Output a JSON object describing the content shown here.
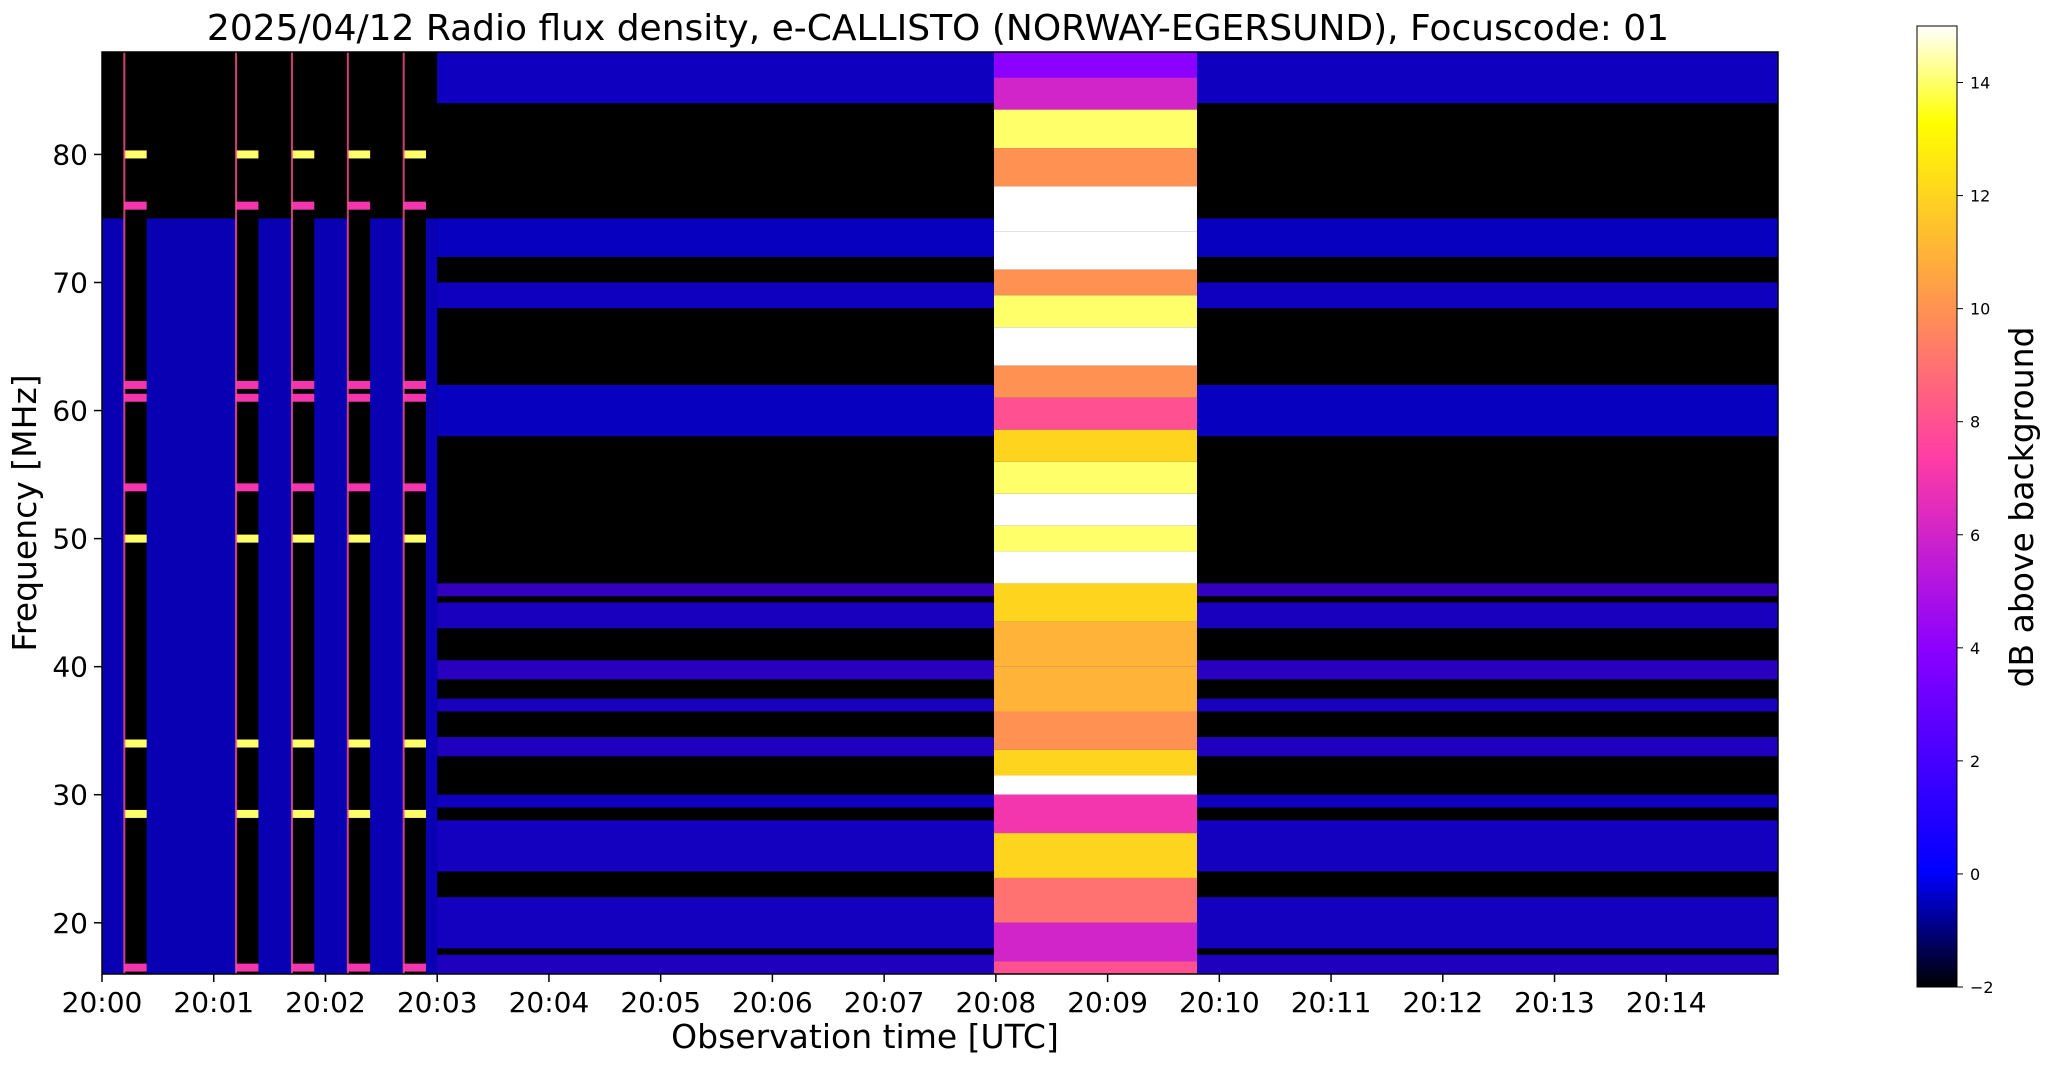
{
  "chart_data": {
    "type": "heatmap",
    "title": "2025/04/12  Radio flux density, e-CALLISTO (NORWAY-EGERSUND), Focuscode: 01",
    "xlabel": "Observation time [UTC]",
    "ylabel": "Frequency [MHz]",
    "xlim": [
      "20:00:00",
      "20:15:00"
    ],
    "ylim": [
      16,
      88
    ],
    "x_ticks": [
      "20:00",
      "20:01",
      "20:02",
      "20:03",
      "20:04",
      "20:05",
      "20:06",
      "20:07",
      "20:08",
      "20:09",
      "20:10",
      "20:11",
      "20:12",
      "20:13",
      "20:14"
    ],
    "y_ticks": [
      20,
      30,
      40,
      50,
      60,
      70,
      80
    ],
    "colorbar": {
      "label": "dB above background",
      "range": [
        -2,
        15
      ],
      "ticks": [
        -2,
        0,
        2,
        4,
        6,
        8,
        10,
        12,
        14
      ],
      "colormap": [
        "#000000",
        "#0000ff",
        "#8a00ff",
        "#ff3ca5",
        "#ff9a4a",
        "#ffff00",
        "#ffffff"
      ]
    },
    "events": [
      {
        "type": "calibration_pulse",
        "start": "20:00:12",
        "end": "20:00:24"
      },
      {
        "type": "calibration_pulse",
        "start": "20:01:12",
        "end": "20:01:24"
      },
      {
        "type": "calibration_pulse",
        "start": "20:01:42",
        "end": "20:01:54"
      },
      {
        "type": "calibration_pulse",
        "start": "20:02:12",
        "end": "20:02:24"
      },
      {
        "type": "calibration_pulse",
        "start": "20:02:42",
        "end": "20:02:54"
      },
      {
        "type": "broadband_emission",
        "start": "20:07:59",
        "end": "20:09:48",
        "peak_db": 15
      }
    ],
    "calibration_lines_mhz": [
      80,
      76,
      62,
      61,
      54,
      50,
      34,
      28.5,
      16.5
    ],
    "burst_profile": [
      {
        "freq": 87,
        "db": 4
      },
      {
        "freq": 85,
        "db": 6
      },
      {
        "freq": 82,
        "db": 14
      },
      {
        "freq": 79,
        "db": 10
      },
      {
        "freq": 76,
        "db": 15
      },
      {
        "freq": 72,
        "db": 15
      },
      {
        "freq": 70,
        "db": 10
      },
      {
        "freq": 68,
        "db": 14
      },
      {
        "freq": 65,
        "db": 15
      },
      {
        "freq": 62,
        "db": 10
      },
      {
        "freq": 60,
        "db": 8
      },
      {
        "freq": 57,
        "db": 12
      },
      {
        "freq": 55,
        "db": 14
      },
      {
        "freq": 52,
        "db": 15
      },
      {
        "freq": 50,
        "db": 14
      },
      {
        "freq": 48,
        "db": 15
      },
      {
        "freq": 45,
        "db": 12
      },
      {
        "freq": 42,
        "db": 11
      },
      {
        "freq": 38,
        "db": 11
      },
      {
        "freq": 35,
        "db": 10
      },
      {
        "freq": 32,
        "db": 12
      },
      {
        "freq": 31,
        "db": 15
      },
      {
        "freq": 29,
        "db": 7
      },
      {
        "freq": 25,
        "db": 12
      },
      {
        "freq": 22,
        "db": 9
      },
      {
        "freq": 18,
        "db": 6
      },
      {
        "freq": 16,
        "db": 8
      }
    ]
  }
}
